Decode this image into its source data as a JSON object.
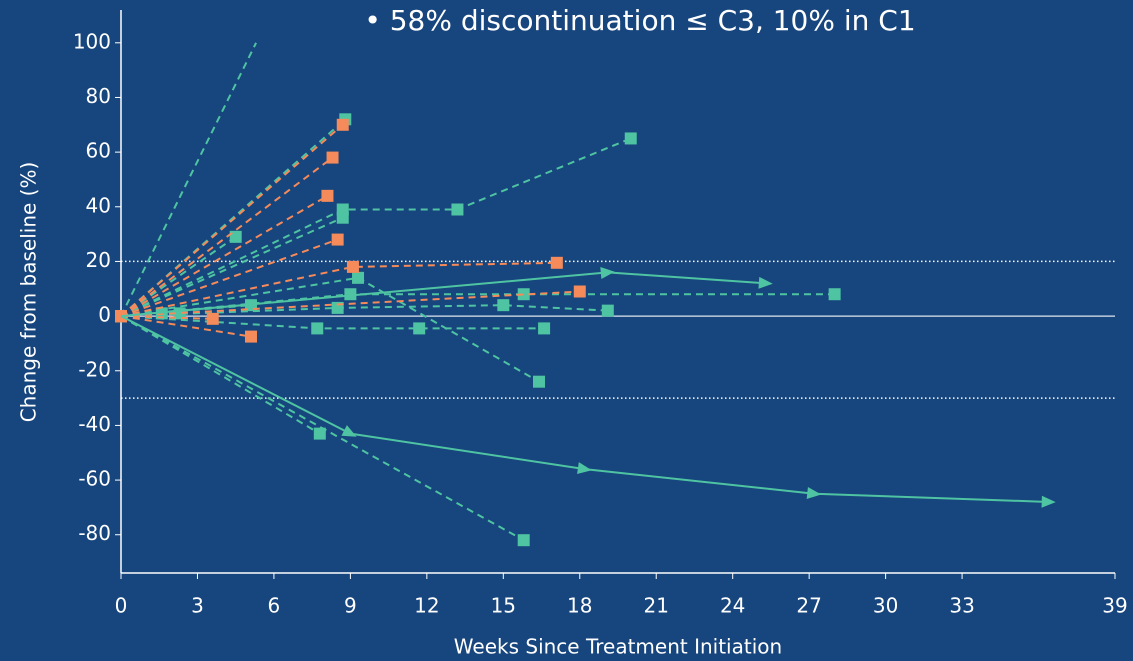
{
  "chart_data": {
    "type": "spider",
    "title": "• 58% discontinuation ≤ C3, 10% in C1",
    "x_label": "Weeks Since Treatment Initiation",
    "y_label": "Change from baseline (%)",
    "xlim": [
      0,
      39
    ],
    "ylim": [
      -94,
      112
    ],
    "xticks": [
      0,
      3,
      6,
      9,
      12,
      15,
      18,
      21,
      24,
      27,
      30,
      33,
      39
    ],
    "yticks": [
      100,
      80,
      60,
      40,
      20,
      0,
      -20,
      -40,
      -60,
      -80
    ],
    "reference_lines": [
      20,
      -30
    ],
    "zero_line": true,
    "series": [
      {
        "color": "#4fc4a2",
        "style": "dashed",
        "marker": "none",
        "x": [
          0,
          5.3
        ],
        "values": [
          0,
          100
        ]
      },
      {
        "color": "#4fc4a2",
        "style": "dashed",
        "marker": "square",
        "x": [
          0,
          8.8
        ],
        "values": [
          0,
          72
        ]
      },
      {
        "color": "#4fc4a2",
        "style": "dashed",
        "marker": "square",
        "x": [
          0,
          8.7,
          13.2,
          20.0
        ],
        "values": [
          0,
          39,
          39,
          65
        ]
      },
      {
        "color": "#4fc4a2",
        "style": "dashed",
        "marker": "square",
        "x": [
          0,
          8.7
        ],
        "values": [
          0,
          36
        ]
      },
      {
        "color": "#4fc4a2",
        "style": "dashed",
        "marker": "square",
        "x": [
          0,
          4.5
        ],
        "values": [
          0,
          29
        ]
      },
      {
        "color": "#4fc4a2",
        "style": "dashed",
        "marker": "square",
        "x": [
          0,
          9.3,
          16.4
        ],
        "values": [
          0,
          14,
          -24
        ]
      },
      {
        "color": "#4fc4a2",
        "style": "dashed",
        "marker": "square",
        "x": [
          0,
          9.0,
          15.8,
          28.0
        ],
        "values": [
          0,
          8,
          8,
          8
        ]
      },
      {
        "color": "#4fc4a2",
        "style": "dashed",
        "marker": "square",
        "x": [
          0,
          8.5,
          15.0,
          19.1
        ],
        "values": [
          0,
          3,
          4,
          2
        ]
      },
      {
        "color": "#4fc4a2",
        "style": "dashed",
        "marker": "square",
        "x": [
          0,
          5.1
        ],
        "values": [
          0,
          4
        ]
      },
      {
        "color": "#4fc4a2",
        "style": "dashed",
        "marker": "square",
        "x": [
          0,
          1.6
        ],
        "values": [
          0,
          1
        ]
      },
      {
        "color": "#4fc4a2",
        "style": "dashed",
        "marker": "square",
        "x": [
          0,
          2.3
        ],
        "values": [
          0,
          1
        ]
      },
      {
        "color": "#4fc4a2",
        "style": "dashed",
        "marker": "square",
        "x": [
          0,
          7.7,
          11.7,
          16.6
        ],
        "values": [
          0,
          -4.5,
          -4.5,
          -4.5
        ]
      },
      {
        "color": "#4fc4a2",
        "style": "dashed",
        "marker": "square",
        "x": [
          0,
          7.8
        ],
        "values": [
          0,
          -43
        ]
      },
      {
        "color": "#4fc4a2",
        "style": "dashed",
        "marker": "square",
        "x": [
          0,
          15.8
        ],
        "values": [
          0,
          -82
        ]
      },
      {
        "color": "#f58a5a",
        "style": "dashed",
        "marker": "square",
        "x": [
          0,
          8.7
        ],
        "values": [
          0,
          70
        ]
      },
      {
        "color": "#f58a5a",
        "style": "dashed",
        "marker": "square",
        "x": [
          0,
          8.3
        ],
        "values": [
          0,
          58
        ]
      },
      {
        "color": "#f58a5a",
        "style": "dashed",
        "marker": "square",
        "x": [
          0,
          8.1
        ],
        "values": [
          0,
          44
        ]
      },
      {
        "color": "#f58a5a",
        "style": "dashed",
        "marker": "square",
        "x": [
          0,
          8.5
        ],
        "values": [
          0,
          28
        ]
      },
      {
        "color": "#f58a5a",
        "style": "dashed",
        "marker": "square",
        "x": [
          0,
          9.1,
          17.1
        ],
        "values": [
          0,
          18,
          19.5
        ]
      },
      {
        "color": "#f58a5a",
        "style": "dashed",
        "marker": "square",
        "x": [
          0,
          18.0
        ],
        "values": [
          0,
          9
        ]
      },
      {
        "color": "#f58a5a",
        "style": "dashed",
        "marker": "square",
        "x": [
          0,
          5.1
        ],
        "values": [
          0,
          -7.5
        ]
      },
      {
        "color": "#f58a5a",
        "style": "dashed",
        "marker": "square",
        "x": [
          0,
          3.6
        ],
        "values": [
          0,
          -1
        ]
      },
      {
        "color": "#4fc4a2",
        "style": "solid",
        "marker": "arrow",
        "x": [
          0,
          9.0,
          18.2,
          27.2,
          36.4
        ],
        "values": [
          0,
          -43,
          -56,
          -65,
          -68
        ]
      },
      {
        "color": "#4fc4a2",
        "style": "solid",
        "marker": "arrow",
        "x": [
          0,
          19.1,
          25.3
        ],
        "values": [
          0,
          16,
          12
        ]
      }
    ]
  }
}
